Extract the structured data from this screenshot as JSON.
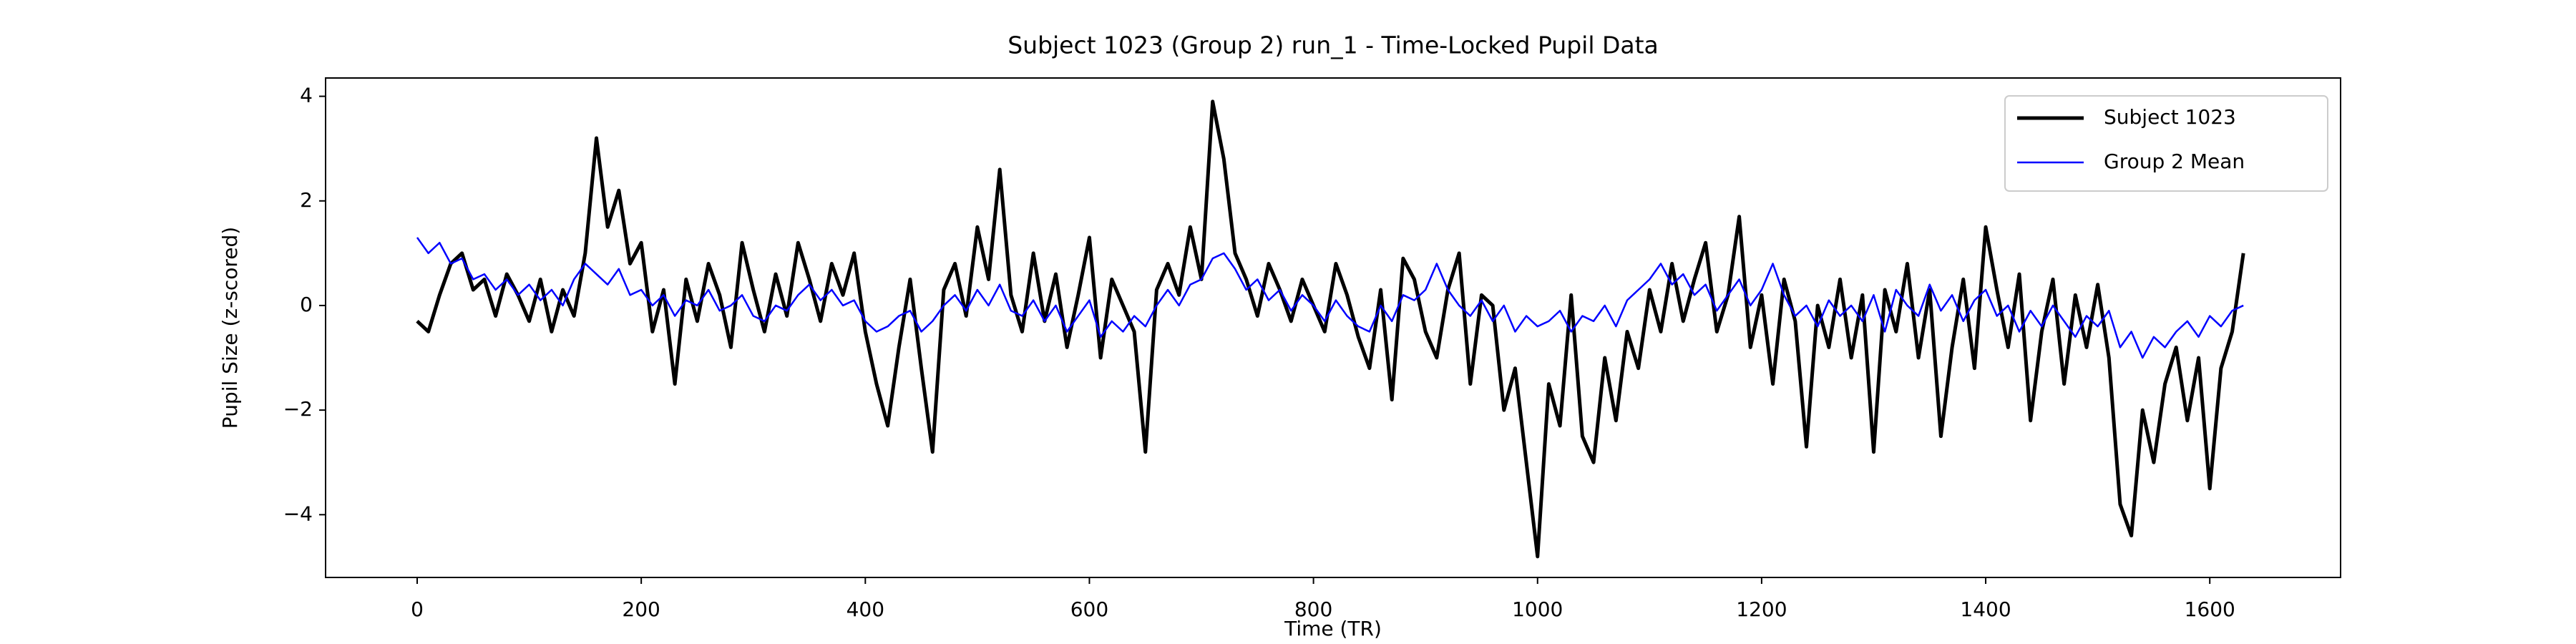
{
  "chart_data": {
    "type": "line",
    "title": "Subject 1023 (Group 2) run_1 - Time-Locked Pupil Data",
    "xlabel": "Time (TR)",
    "ylabel": "Pupil Size (z-scored)",
    "x": [
      0,
      10,
      20,
      30,
      40,
      50,
      60,
      70,
      80,
      90,
      100,
      110,
      120,
      130,
      140,
      150,
      160,
      170,
      180,
      190,
      200,
      210,
      220,
      230,
      240,
      250,
      260,
      270,
      280,
      290,
      300,
      310,
      320,
      330,
      340,
      350,
      360,
      370,
      380,
      390,
      400,
      410,
      420,
      430,
      440,
      450,
      460,
      470,
      480,
      490,
      500,
      510,
      520,
      530,
      540,
      550,
      560,
      570,
      580,
      590,
      600,
      610,
      620,
      630,
      640,
      650,
      660,
      670,
      680,
      690,
      700,
      710,
      720,
      730,
      740,
      750,
      760,
      770,
      780,
      790,
      800,
      810,
      820,
      830,
      840,
      850,
      860,
      870,
      880,
      890,
      900,
      910,
      920,
      930,
      940,
      950,
      960,
      970,
      980,
      990,
      1000,
      1010,
      1020,
      1030,
      1040,
      1050,
      1060,
      1070,
      1080,
      1090,
      1100,
      1110,
      1120,
      1130,
      1140,
      1150,
      1160,
      1170,
      1180,
      1190,
      1200,
      1210,
      1220,
      1230,
      1240,
      1250,
      1260,
      1270,
      1280,
      1290,
      1300,
      1310,
      1320,
      1330,
      1340,
      1350,
      1360,
      1370,
      1380,
      1390,
      1400,
      1410,
      1420,
      1430,
      1440,
      1450,
      1460,
      1470,
      1480,
      1490,
      1500,
      1510,
      1520,
      1530,
      1540,
      1550,
      1560,
      1570,
      1580,
      1590,
      1600,
      1610,
      1620,
      1630
    ],
    "series": [
      {
        "name": "Subject 1023",
        "color": "#000000",
        "width": 5,
        "values": [
          -0.3,
          -0.5,
          0.2,
          0.8,
          1.0,
          0.3,
          0.5,
          -0.2,
          0.6,
          0.2,
          -0.3,
          0.5,
          -0.5,
          0.3,
          -0.2,
          1.0,
          3.2,
          1.5,
          2.2,
          0.8,
          1.2,
          -0.5,
          0.3,
          -1.5,
          0.5,
          -0.3,
          0.8,
          0.2,
          -0.8,
          1.2,
          0.3,
          -0.5,
          0.6,
          -0.2,
          1.2,
          0.5,
          -0.3,
          0.8,
          0.2,
          1.0,
          -0.5,
          -1.5,
          -2.3,
          -0.8,
          0.5,
          -1.2,
          -2.8,
          0.3,
          0.8,
          -0.2,
          1.5,
          0.5,
          2.6,
          0.2,
          -0.5,
          1.0,
          -0.3,
          0.6,
          -0.8,
          0.2,
          1.3,
          -1.0,
          0.5,
          0.0,
          -0.5,
          -2.8,
          0.3,
          0.8,
          0.2,
          1.5,
          0.5,
          3.9,
          2.8,
          1.0,
          0.5,
          -0.2,
          0.8,
          0.3,
          -0.3,
          0.5,
          0.0,
          -0.5,
          0.8,
          0.2,
          -0.6,
          -1.2,
          0.3,
          -1.8,
          0.9,
          0.5,
          -0.5,
          -1.0,
          0.3,
          1.0,
          -1.5,
          0.2,
          0.0,
          -2.0,
          -1.2,
          -3.0,
          -4.8,
          -1.5,
          -2.3,
          0.2,
          -2.5,
          -3.0,
          -1.0,
          -2.2,
          -0.5,
          -1.2,
          0.3,
          -0.5,
          0.8,
          -0.3,
          0.5,
          1.2,
          -0.5,
          0.2,
          1.7,
          -0.8,
          0.2,
          -1.5,
          0.5,
          -0.3,
          -2.7,
          0.0,
          -0.8,
          0.5,
          -1.0,
          0.2,
          -2.8,
          0.3,
          -0.5,
          0.8,
          -1.0,
          0.3,
          -2.5,
          -0.8,
          0.5,
          -1.2,
          1.5,
          0.3,
          -0.8,
          0.6,
          -2.2,
          -0.5,
          0.5,
          -1.5,
          0.2,
          -0.8,
          0.4,
          -1.0,
          -3.8,
          -4.4,
          -2.0,
          -3.0,
          -1.5,
          -0.8,
          -2.2,
          -1.0,
          -3.5,
          -1.2,
          -0.5,
          1.0
        ]
      },
      {
        "name": "Group 2 Mean",
        "color": "#0000ff",
        "width": 2.5,
        "values": [
          1.3,
          1.0,
          1.2,
          0.8,
          0.9,
          0.5,
          0.6,
          0.3,
          0.5,
          0.2,
          0.4,
          0.1,
          0.3,
          0.0,
          0.5,
          0.8,
          0.6,
          0.4,
          0.7,
          0.2,
          0.3,
          0.0,
          0.2,
          -0.2,
          0.1,
          0.0,
          0.3,
          -0.1,
          0.0,
          0.2,
          -0.2,
          -0.3,
          0.0,
          -0.1,
          0.2,
          0.4,
          0.1,
          0.3,
          0.0,
          0.1,
          -0.3,
          -0.5,
          -0.4,
          -0.2,
          -0.1,
          -0.5,
          -0.3,
          0.0,
          0.2,
          -0.1,
          0.3,
          0.0,
          0.4,
          -0.1,
          -0.2,
          0.1,
          -0.3,
          0.0,
          -0.5,
          -0.2,
          0.1,
          -0.6,
          -0.3,
          -0.5,
          -0.2,
          -0.4,
          0.0,
          0.3,
          0.0,
          0.4,
          0.5,
          0.9,
          1.0,
          0.7,
          0.3,
          0.5,
          0.1,
          0.3,
          -0.1,
          0.2,
          0.0,
          -0.3,
          0.1,
          -0.2,
          -0.4,
          -0.5,
          0.0,
          -0.3,
          0.2,
          0.1,
          0.3,
          0.8,
          0.3,
          0.0,
          -0.2,
          0.1,
          -0.3,
          0.0,
          -0.5,
          -0.2,
          -0.4,
          -0.3,
          -0.1,
          -0.5,
          -0.2,
          -0.3,
          0.0,
          -0.4,
          0.1,
          0.3,
          0.5,
          0.8,
          0.4,
          0.6,
          0.2,
          0.4,
          -0.1,
          0.2,
          0.5,
          0.0,
          0.3,
          0.8,
          0.2,
          -0.2,
          0.0,
          -0.4,
          0.1,
          -0.2,
          0.0,
          -0.3,
          0.2,
          -0.5,
          0.3,
          0.0,
          -0.2,
          0.4,
          -0.1,
          0.2,
          -0.3,
          0.1,
          0.3,
          -0.2,
          0.0,
          -0.5,
          -0.1,
          -0.4,
          0.0,
          -0.3,
          -0.6,
          -0.2,
          -0.4,
          -0.1,
          -0.8,
          -0.5,
          -1.0,
          -0.6,
          -0.8,
          -0.5,
          -0.3,
          -0.6,
          -0.2,
          -0.4,
          -0.1,
          0.0
        ]
      }
    ],
    "xlim": [
      -81.75,
      1716.75
    ],
    "ylim": [
      -5.2,
      4.35
    ],
    "xticks": [
      0,
      200,
      400,
      600,
      800,
      1000,
      1200,
      1400,
      1600
    ],
    "yticks": [
      {
        "value": -4,
        "label": "−4"
      },
      {
        "value": -2,
        "label": "−2"
      },
      0,
      2,
      4
    ],
    "legend": "upper right",
    "grid": false
  }
}
